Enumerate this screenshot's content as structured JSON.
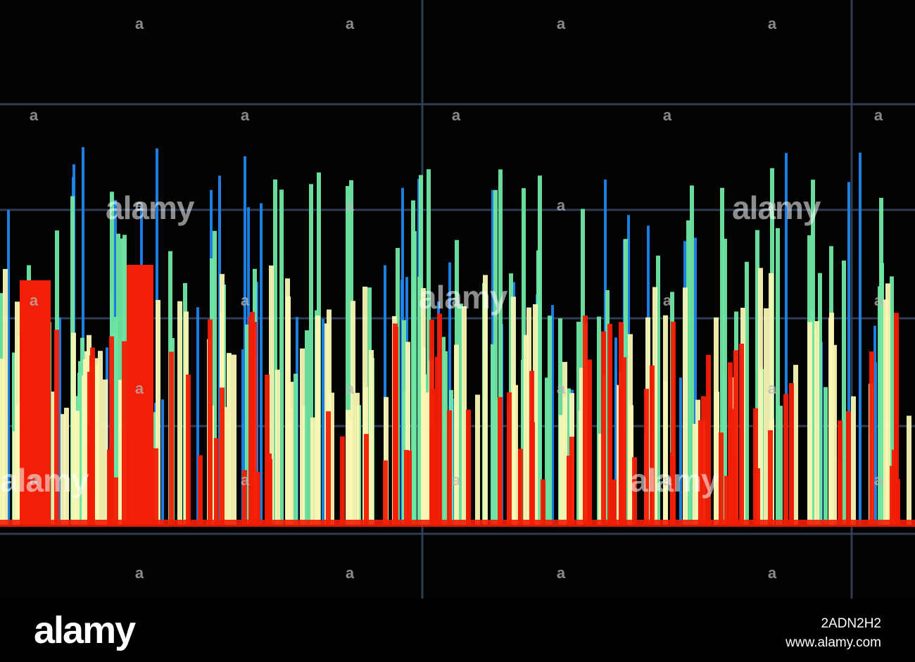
{
  "image": {
    "subject": "",
    "colors": {
      "background": "#020203",
      "grid": "#3a4a66",
      "red": "#f21e05",
      "cream": "#f9f7b3",
      "green": "#6fe7a3",
      "blue": "#1e86ec",
      "watermark_mark": "#b8b8b8"
    }
  },
  "watermark": {
    "tile_text": "alamy",
    "logo": "alamy",
    "image_id": "2ADN2H2",
    "url": "www.alamy.com"
  }
}
